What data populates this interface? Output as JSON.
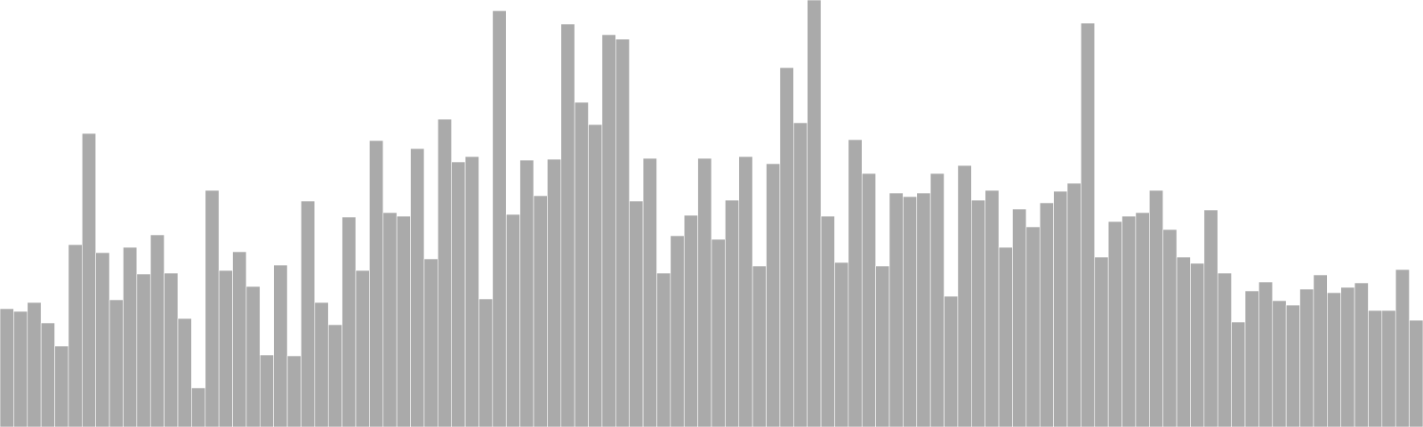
{
  "chart_data": {
    "type": "bar",
    "ylim": [
      0,
      480
    ],
    "grid": false,
    "legend": "none",
    "bar_color": "#aaaaaa",
    "bar_edge_color": "#ffffff",
    "values": [
      133,
      130,
      140,
      117,
      91,
      205,
      330,
      196,
      143,
      202,
      172,
      216,
      173,
      122,
      44,
      266,
      176,
      197,
      158,
      81,
      182,
      80,
      254,
      140,
      115,
      236,
      176,
      322,
      241,
      237,
      313,
      189,
      346,
      298,
      304,
      144,
      468,
      239,
      300,
      260,
      301,
      453,
      365,
      340,
      441,
      436,
      254,
      302,
      173,
      215,
      238,
      302,
      211,
      255,
      304,
      181,
      296,
      404,
      342,
      480,
      237,
      185,
      323,
      285,
      181,
      263,
      259,
      263,
      285,
      147,
      294,
      255,
      266,
      202,
      245,
      225,
      252,
      265,
      274,
      454,
      191,
      231,
      237,
      241,
      266,
      222,
      191,
      184,
      244,
      173,
      118,
      153,
      163,
      142,
      137,
      155,
      171,
      151,
      157,
      162,
      131,
      131,
      177,
      120
    ]
  }
}
